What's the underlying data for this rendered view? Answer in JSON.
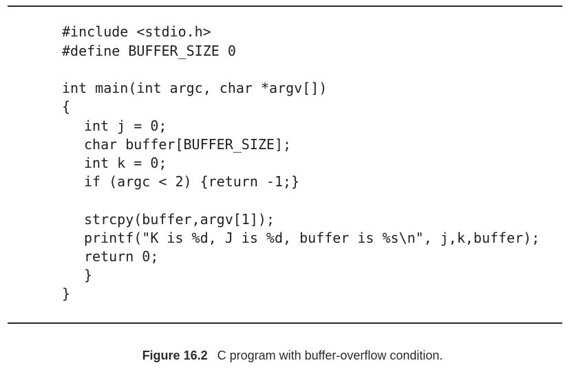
{
  "figure": {
    "code_lines": [
      "#include <stdio.h>",
      "#define BUFFER_SIZE 0",
      "",
      "int main(int argc, char *argv[])",
      "{",
      "int j = 0;",
      "char buffer[BUFFER_SIZE];",
      "int k = 0;",
      "if (argc < 2) {return -1;}",
      "",
      "strcpy(buffer,argv[1]);",
      "printf(\"K is %d, J is %d, buffer is %s\\n\", j,k,buffer);",
      "return 0;",
      "}",
      "}"
    ],
    "caption_label": "Figure 16.2",
    "caption_text": "C program with buffer-overflow condition."
  }
}
